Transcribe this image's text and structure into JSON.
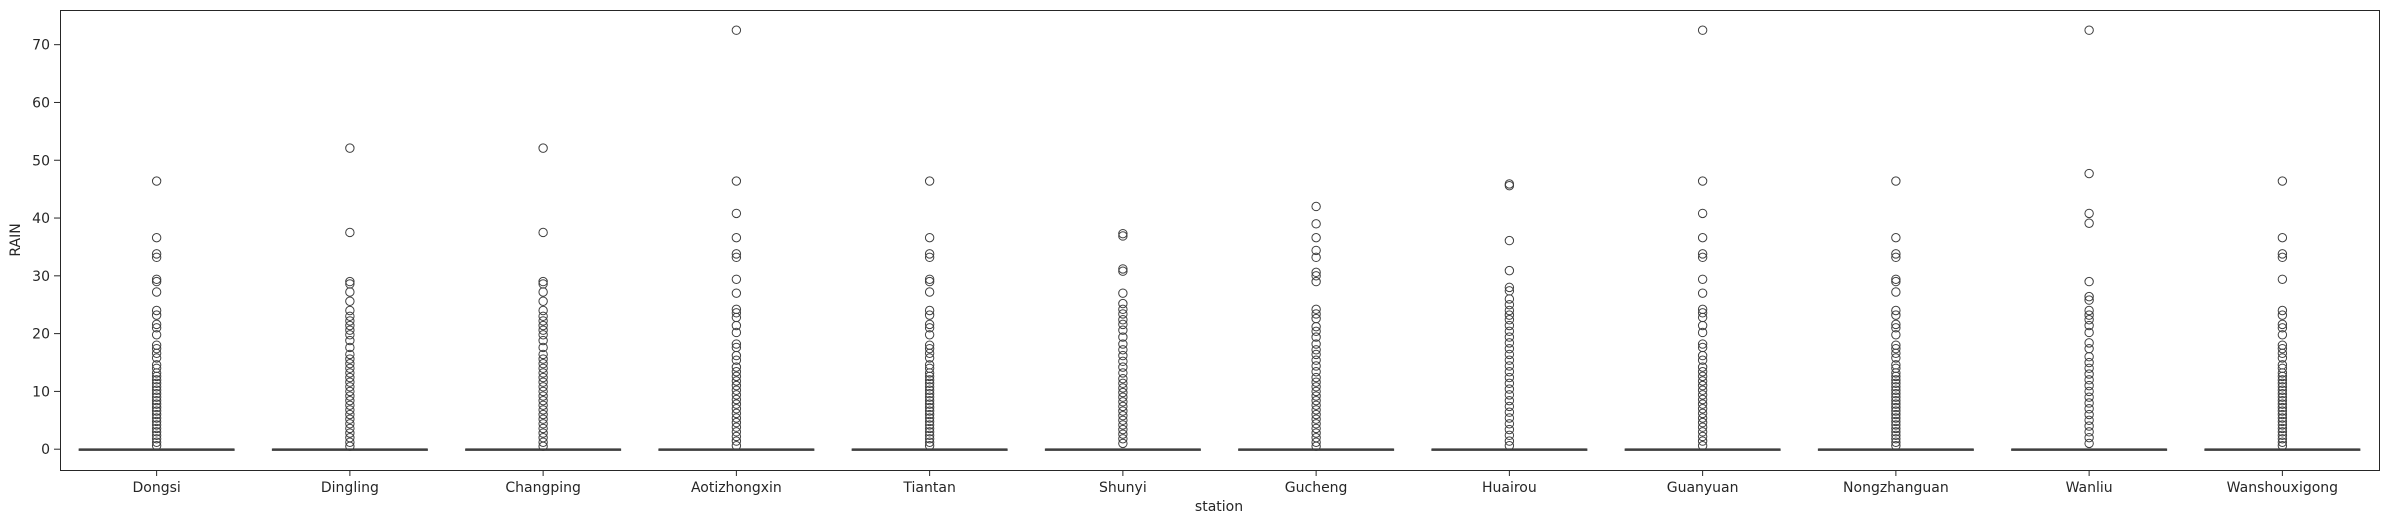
{
  "chart_data": {
    "type": "box",
    "xlabel": "station",
    "ylabel": "RAIN",
    "ylim": [
      -3.6,
      76.0
    ],
    "yticks": [
      "0",
      "10",
      "20",
      "30",
      "40",
      "50",
      "60",
      "70"
    ],
    "grid": false,
    "categories": [
      "Dongsi",
      "Dingling",
      "Changping",
      "Aotizhongxin",
      "Tiantan",
      "Shunyi",
      "Gucheng",
      "Huairou",
      "Guanyuan",
      "Nongzhanguan",
      "Wanliu",
      "Wanshouxigong"
    ],
    "box_stats": {
      "q1": 0,
      "median": 0,
      "q3": 0,
      "whisker_low": 0,
      "whisker_high": 0
    },
    "outliers": [
      [
        46.4,
        36.6,
        33.8,
        33.2,
        29.4,
        29.0,
        27.2,
        24.0,
        23.2,
        21.6,
        21.0,
        19.8,
        18.0,
        17.4,
        16.6,
        15.8,
        14.6,
        14.0,
        13.2,
        12.6,
        12.0,
        11.4,
        10.8,
        10.2,
        9.6,
        9.0,
        8.4,
        7.8,
        7.2,
        6.6,
        6.0,
        5.4,
        4.8,
        4.2,
        3.6,
        3.0,
        2.4,
        1.8,
        1.2,
        0.6
      ],
      [
        52.1,
        37.5,
        29.0,
        28.6,
        27.2,
        25.6,
        24.0,
        23.0,
        22.2,
        21.4,
        20.6,
        19.8,
        18.8,
        17.6,
        16.4,
        15.6,
        14.8,
        14.0,
        13.2,
        12.4,
        11.6,
        10.8,
        10.0,
        9.2,
        8.4,
        7.6,
        6.8,
        6.0,
        5.2,
        4.4,
        3.6,
        2.8,
        2.0,
        1.2,
        0.5
      ],
      [
        52.1,
        37.5,
        29.0,
        28.6,
        27.2,
        25.6,
        24.0,
        23.0,
        22.2,
        21.4,
        20.6,
        19.8,
        18.8,
        17.6,
        16.4,
        15.6,
        14.8,
        14.0,
        13.2,
        12.4,
        11.6,
        10.8,
        10.0,
        9.2,
        8.4,
        7.6,
        6.8,
        6.0,
        5.2,
        4.4,
        3.6,
        2.8,
        2.0,
        1.2,
        0.5
      ],
      [
        72.5,
        46.4,
        40.8,
        36.6,
        33.8,
        33.2,
        29.4,
        27.0,
        24.2,
        23.6,
        22.8,
        21.4,
        20.2,
        18.2,
        17.6,
        16.2,
        15.4,
        14.2,
        13.4,
        12.6,
        11.8,
        11.0,
        10.2,
        9.4,
        8.6,
        7.8,
        7.0,
        6.2,
        5.4,
        4.6,
        3.8,
        3.0,
        2.2,
        1.4,
        0.6
      ],
      [
        46.4,
        36.6,
        33.8,
        33.2,
        29.4,
        29.0,
        27.2,
        24.0,
        23.2,
        21.6,
        21.0,
        19.8,
        18.0,
        17.4,
        16.6,
        15.8,
        14.6,
        14.0,
        13.2,
        12.6,
        12.0,
        11.4,
        10.8,
        10.2,
        9.6,
        9.0,
        8.4,
        7.8,
        7.2,
        6.6,
        6.0,
        5.4,
        4.8,
        4.2,
        3.6,
        3.0,
        2.4,
        1.8,
        1.2,
        0.6
      ],
      [
        37.3,
        36.9,
        31.2,
        30.8,
        27.0,
        25.2,
        24.2,
        23.4,
        22.4,
        21.6,
        20.6,
        19.4,
        18.2,
        17.2,
        16.2,
        15.2,
        14.2,
        13.2,
        12.2,
        11.4,
        10.6,
        9.8,
        9.0,
        8.2,
        7.4,
        6.6,
        5.8,
        5.0,
        4.2,
        3.4,
        2.6,
        1.8,
        1.0
      ],
      [
        42.0,
        39.0,
        36.6,
        34.4,
        33.2,
        30.6,
        30.0,
        29.0,
        24.2,
        23.4,
        22.6,
        21.2,
        20.4,
        19.4,
        18.2,
        17.2,
        16.4,
        15.4,
        14.4,
        13.4,
        12.4,
        11.6,
        10.8,
        10.0,
        9.2,
        8.4,
        7.6,
        6.8,
        6.0,
        5.2,
        4.4,
        3.6,
        2.8,
        2.0,
        1.2,
        0.5
      ],
      [
        45.9,
        45.6,
        36.1,
        30.9,
        28.0,
        27.4,
        26.0,
        25.0,
        24.0,
        23.2,
        22.4,
        21.4,
        20.4,
        19.4,
        18.4,
        17.4,
        16.4,
        15.4,
        14.4,
        13.4,
        12.4,
        11.4,
        10.4,
        9.4,
        8.4,
        7.4,
        6.4,
        5.4,
        4.4,
        3.4,
        2.4,
        1.4,
        0.6
      ],
      [
        72.5,
        46.4,
        40.8,
        36.6,
        33.8,
        33.2,
        29.4,
        27.0,
        24.2,
        23.6,
        22.8,
        21.4,
        20.2,
        18.2,
        17.6,
        16.2,
        15.4,
        14.2,
        13.4,
        12.6,
        11.8,
        11.0,
        10.2,
        9.4,
        8.6,
        7.8,
        7.0,
        6.2,
        5.4,
        4.6,
        3.8,
        3.0,
        2.2,
        1.4,
        0.6
      ],
      [
        46.4,
        36.6,
        33.8,
        33.2,
        29.4,
        29.0,
        27.2,
        24.0,
        23.2,
        21.6,
        21.0,
        19.8,
        18.0,
        17.4,
        16.6,
        15.8,
        14.6,
        14.0,
        13.2,
        12.6,
        12.0,
        11.4,
        10.8,
        10.2,
        9.6,
        9.0,
        8.4,
        7.8,
        7.2,
        6.6,
        6.0,
        5.4,
        4.8,
        4.2,
        3.6,
        3.0,
        2.4,
        1.8,
        1.2,
        0.6
      ],
      [
        72.5,
        47.7,
        40.8,
        39.1,
        29.0,
        26.4,
        25.8,
        24.0,
        23.2,
        22.4,
        21.4,
        20.2,
        18.4,
        17.4,
        16.0,
        15.0,
        14.0,
        13.0,
        12.0,
        11.0,
        10.0,
        9.0,
        8.0,
        7.0,
        6.0,
        5.0,
        4.0,
        3.0,
        2.0,
        1.0
      ],
      [
        46.4,
        36.6,
        33.8,
        33.2,
        29.4,
        24.0,
        23.2,
        21.6,
        21.0,
        19.8,
        18.0,
        17.4,
        16.6,
        15.8,
        14.6,
        14.0,
        13.2,
        12.6,
        12.0,
        11.4,
        10.8,
        10.2,
        9.6,
        9.0,
        8.4,
        7.8,
        7.2,
        6.6,
        6.0,
        5.4,
        4.8,
        4.2,
        3.6,
        3.0,
        2.4,
        1.8,
        1.2,
        0.6
      ]
    ]
  }
}
